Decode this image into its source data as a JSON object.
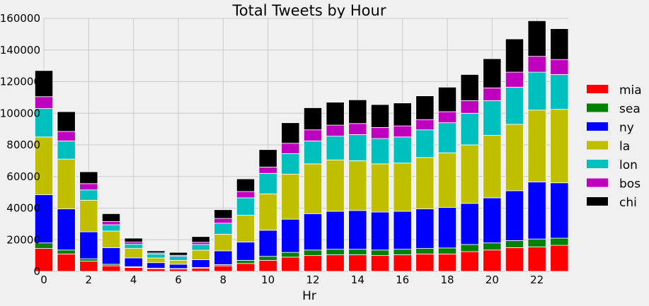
{
  "chart_data": {
    "type": "bar",
    "stacked": true,
    "title": "Total Tweets by Hour",
    "xlabel": "Hr",
    "ylabel": "",
    "xlim": [
      0,
      23.4
    ],
    "ylim": [
      0,
      160000
    ],
    "xticks": [
      0,
      2,
      4,
      6,
      8,
      10,
      12,
      14,
      16,
      18,
      20,
      22
    ],
    "yticks": [
      0,
      20000,
      40000,
      60000,
      80000,
      100000,
      120000,
      140000,
      160000
    ],
    "grid": true,
    "legend_position": "right",
    "x": [
      0,
      1,
      2,
      3,
      4,
      5,
      6,
      7,
      8,
      9,
      10,
      11,
      12,
      13,
      14,
      15,
      16,
      17,
      18,
      19,
      20,
      21,
      22,
      23
    ],
    "series": [
      {
        "name": "mia",
        "color": "#ff0000",
        "values": [
          14500,
          11000,
          6500,
          3500,
          2500,
          1700,
          1500,
          2000,
          3500,
          5000,
          7000,
          9000,
          10000,
          10500,
          10500,
          10000,
          10500,
          11000,
          11000,
          12500,
          13500,
          15000,
          15500,
          16500
        ]
      },
      {
        "name": "sea",
        "color": "#008000",
        "values": [
          3500,
          2500,
          1500,
          1000,
          500,
          300,
          300,
          400,
          800,
          2000,
          2500,
          3000,
          3500,
          3500,
          3500,
          3500,
          3500,
          3500,
          3800,
          4500,
          4500,
          4500,
          5000,
          4500
        ]
      },
      {
        "name": "ny",
        "color": "#0000ff",
        "values": [
          30500,
          26000,
          17000,
          10500,
          5500,
          3500,
          2700,
          5000,
          8700,
          11500,
          16500,
          21000,
          23000,
          24000,
          24500,
          24000,
          24000,
          25000,
          25700,
          26000,
          28500,
          31500,
          36000,
          35000
        ]
      },
      {
        "name": "la",
        "color": "#bfbf00",
        "values": [
          36500,
          31500,
          20000,
          10500,
          6000,
          3000,
          2500,
          6000,
          10500,
          17000,
          23000,
          28500,
          31500,
          32500,
          31500,
          30500,
          30500,
          32500,
          34500,
          37000,
          39500,
          42000,
          45500,
          46500
        ]
      },
      {
        "name": "lon",
        "color": "#00bfbf",
        "values": [
          18000,
          11500,
          6500,
          4000,
          2700,
          2500,
          2500,
          3600,
          7000,
          11000,
          13000,
          13000,
          14500,
          15000,
          16500,
          16000,
          16500,
          17500,
          19000,
          20000,
          22000,
          23500,
          24000,
          22000
        ]
      },
      {
        "name": "bos",
        "color": "#bf00bf",
        "values": [
          7500,
          6000,
          4000,
          2000,
          1300,
          700,
          700,
          1400,
          3000,
          4000,
          4000,
          6500,
          7000,
          7000,
          7000,
          7000,
          7000,
          6500,
          7000,
          8000,
          8000,
          9500,
          10000,
          9500
        ]
      },
      {
        "name": "chi",
        "color": "#000000",
        "values": [
          16500,
          12500,
          7500,
          5000,
          2500,
          1300,
          1800,
          3600,
          5500,
          8000,
          11000,
          13000,
          14000,
          14500,
          15000,
          14500,
          14500,
          15000,
          15500,
          16500,
          18500,
          21000,
          22500,
          19500
        ]
      }
    ]
  }
}
